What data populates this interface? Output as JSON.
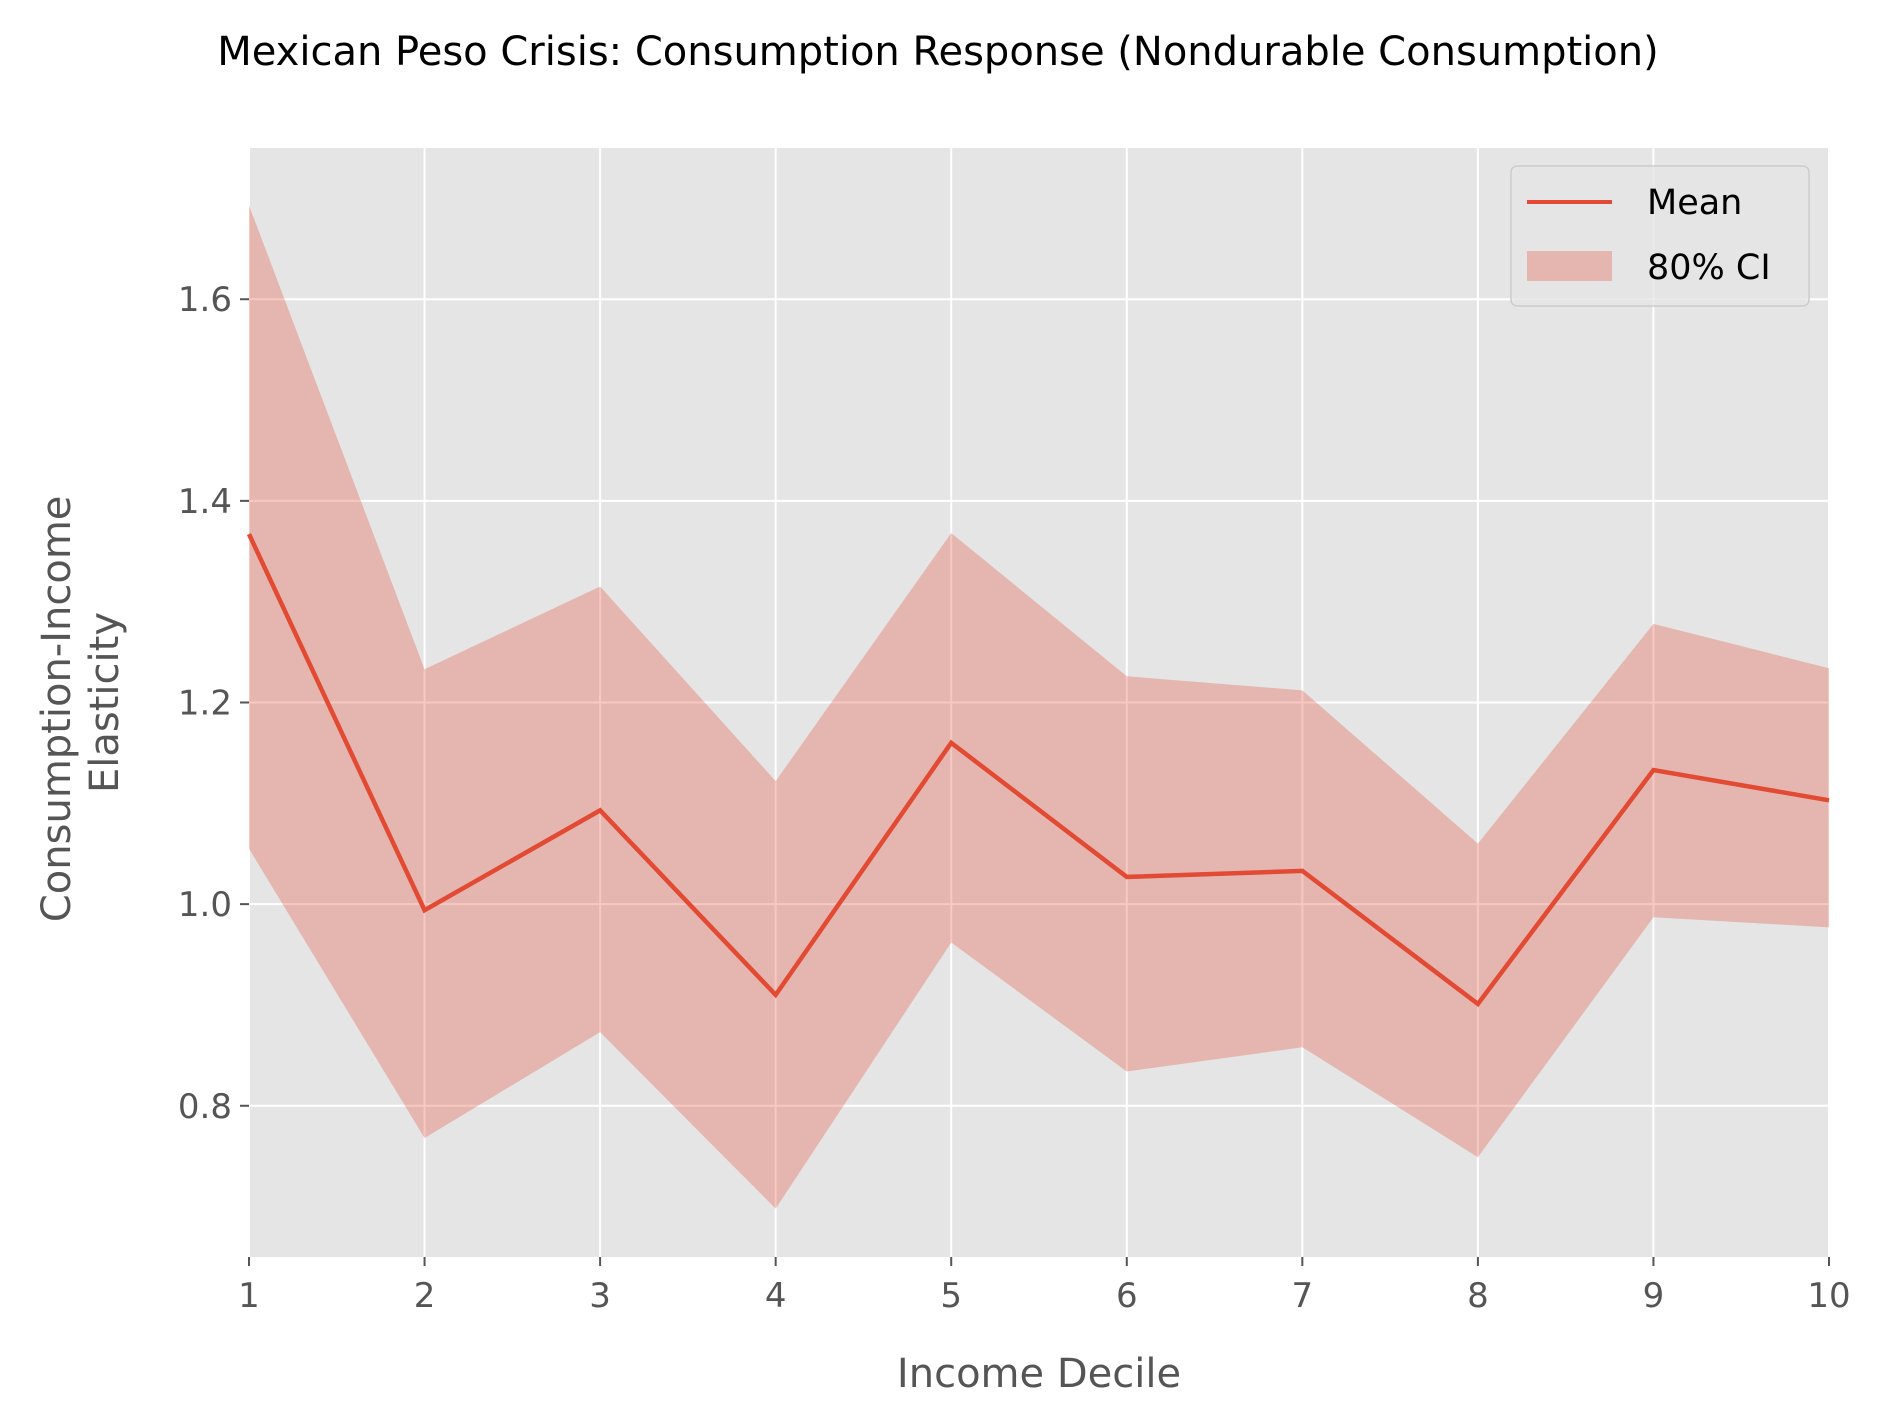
{
  "chart_data": {
    "type": "line",
    "title": "Mexican Peso Crisis: Consumption Response (Nondurable Consumption)",
    "xlabel": "Income Decile",
    "ylabel": [
      "Consumption-Income",
      "Elasticity"
    ],
    "x": [
      1,
      2,
      3,
      4,
      5,
      6,
      7,
      8,
      9,
      10
    ],
    "xlim": [
      1,
      10
    ],
    "ylim": [
      0.65,
      1.75
    ],
    "xticks": [
      "1",
      "2",
      "3",
      "4",
      "5",
      "6",
      "7",
      "8",
      "9",
      "10"
    ],
    "yticks": [
      0.8,
      1.0,
      1.2,
      1.4,
      1.6
    ],
    "ytick_labels": [
      "0.8",
      "1.0",
      "1.2",
      "1.4",
      "1.6"
    ],
    "grid": true,
    "legend_position": "top-right",
    "series": [
      {
        "name": "Mean",
        "kind": "line",
        "color": "#E24A33",
        "values": [
          1.367,
          0.994,
          1.093,
          0.91,
          1.16,
          1.027,
          1.033,
          0.901,
          1.133,
          1.103
        ]
      },
      {
        "name": "80% CI",
        "kind": "band",
        "color": "#E24A33",
        "alpha": 0.3,
        "lower": [
          1.055,
          0.768,
          0.873,
          0.698,
          0.962,
          0.834,
          0.858,
          0.749,
          0.987,
          0.977
        ],
        "upper": [
          1.693,
          1.233,
          1.315,
          1.122,
          1.368,
          1.226,
          1.212,
          1.06,
          1.278,
          1.234
        ]
      }
    ]
  }
}
